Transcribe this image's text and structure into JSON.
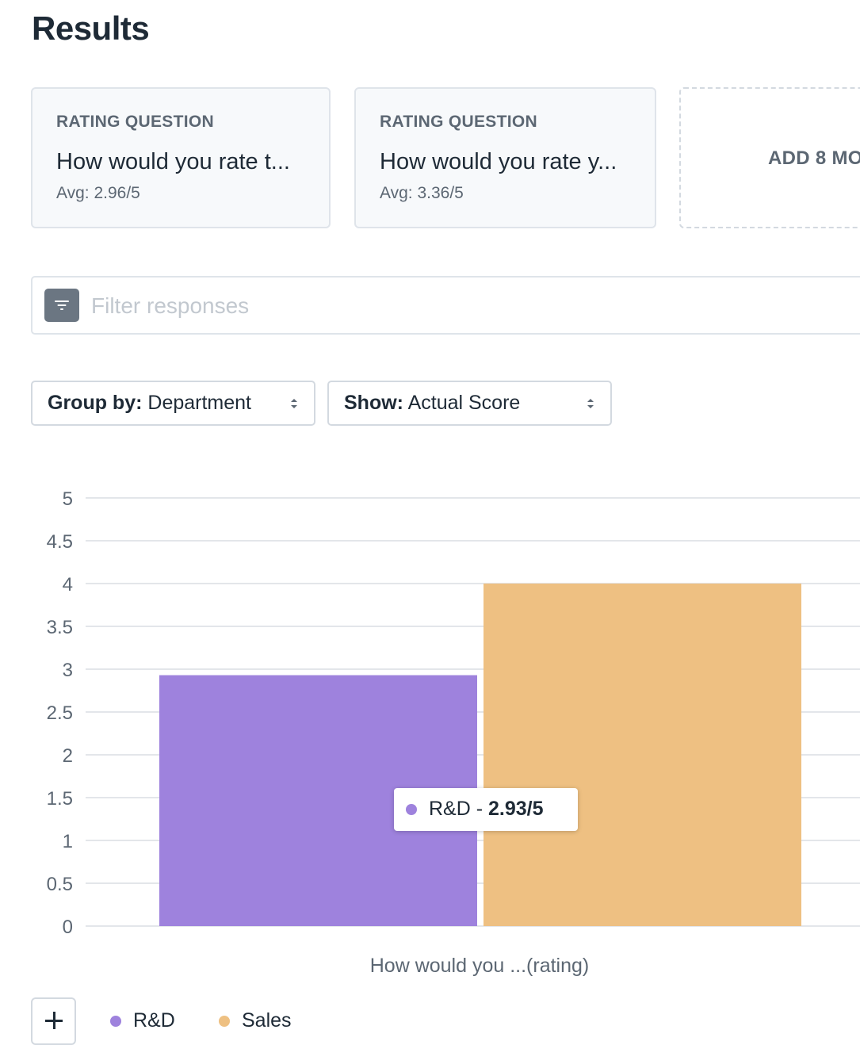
{
  "page": {
    "title": "Results"
  },
  "cards": [
    {
      "kind": "RATING QUESTION",
      "question": "How would you rate t...",
      "avg": "Avg: 2.96/5"
    },
    {
      "kind": "RATING QUESTION",
      "question": "How would you rate y...",
      "avg": "Avg: 3.36/5"
    }
  ],
  "add_card": {
    "label": "ADD 8 MO"
  },
  "filter": {
    "placeholder": "Filter responses",
    "value": ""
  },
  "group_by": {
    "label": "Group by:",
    "value": "Department"
  },
  "show": {
    "label": "Show:",
    "value": "Actual Score"
  },
  "tooltip": {
    "series": "R&D",
    "separator": " - ",
    "value": "2.93/5"
  },
  "colors": {
    "rd": "#9e82dd",
    "sales": "#eec082",
    "grid": "#e3e6ea",
    "axis_text": "#5c6773"
  },
  "chart_data": {
    "type": "bar",
    "categories": [
      "How would you ...(rating)"
    ],
    "series": [
      {
        "name": "R&D",
        "values": [
          2.93
        ]
      },
      {
        "name": "Sales",
        "values": [
          4
        ]
      }
    ],
    "xlabel": "How would you ...(rating)",
    "ylabel": "",
    "ylim": [
      0,
      5
    ],
    "yticks": [
      "0",
      "0.5",
      "1",
      "1.5",
      "2",
      "2.5",
      "3",
      "3.5",
      "4",
      "4.5",
      "5"
    ],
    "grid": true,
    "legend_position": "bottom-left"
  }
}
